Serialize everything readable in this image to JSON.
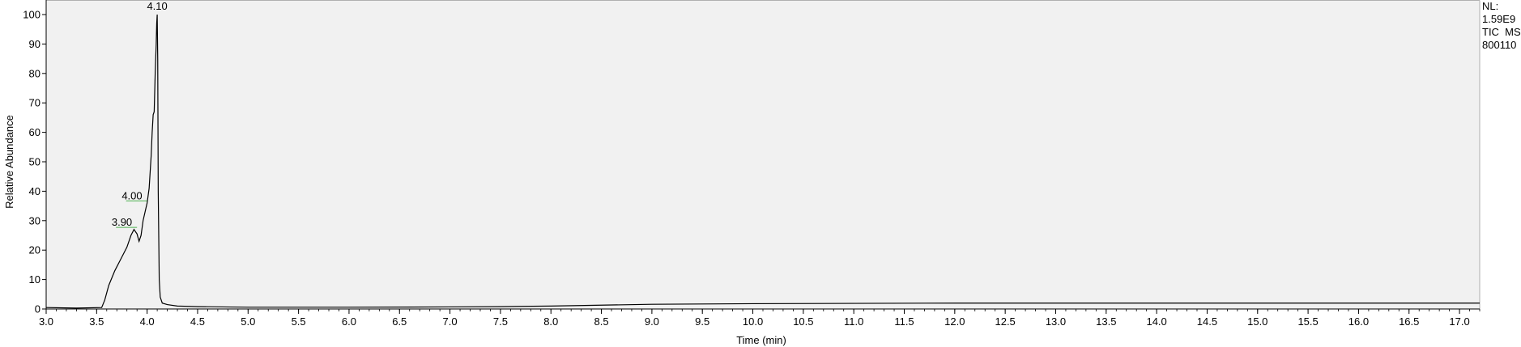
{
  "chart_data": {
    "type": "line",
    "xlabel": "Time (min)",
    "ylabel": "Relative Abundance",
    "xlim": [
      3.0,
      17.2
    ],
    "ylim": [
      0,
      100
    ],
    "x_ticks": [
      "3.0",
      "3.5",
      "4.0",
      "4.5",
      "5.0",
      "5.5",
      "6.0",
      "6.5",
      "7.0",
      "7.5",
      "8.0",
      "8.5",
      "9.0",
      "9.5",
      "10.0",
      "10.5",
      "11.0",
      "11.5",
      "12.0",
      "12.5",
      "13.0",
      "13.5",
      "14.0",
      "14.5",
      "15.0",
      "15.5",
      "16.0",
      "16.5",
      "17.0"
    ],
    "y_ticks": [
      "0",
      "10",
      "20",
      "30",
      "40",
      "50",
      "60",
      "70",
      "80",
      "90",
      "100"
    ],
    "info": [
      "NL:",
      "1.59E9",
      "TIC  MS",
      "800110"
    ],
    "peak_labels": [
      {
        "x": 4.1,
        "y": 100,
        "text": "4.10"
      },
      {
        "x": 4.0,
        "y": 37,
        "text": "4.00"
      },
      {
        "x": 3.9,
        "y": 28,
        "text": "3.90"
      }
    ],
    "series": [
      {
        "x": [
          3.0,
          3.3,
          3.55,
          3.58,
          3.62,
          3.68,
          3.74,
          3.8,
          3.84,
          3.87,
          3.89,
          3.9,
          3.92,
          3.94,
          3.96,
          3.98,
          4.0,
          4.02,
          4.04,
          4.05,
          4.06,
          4.07,
          4.08,
          4.09,
          4.095,
          4.1,
          4.105,
          4.11,
          4.12,
          4.13,
          4.15,
          4.2,
          4.3,
          4.5,
          5.0,
          6.0,
          7.0,
          7.5,
          8.0,
          8.5,
          9.0,
          10.0,
          11.0,
          12.0,
          13.0,
          14.0,
          15.0,
          16.0,
          17.0,
          17.2
        ],
        "y": [
          0.5,
          0.3,
          0.5,
          3,
          8,
          13,
          17,
          21,
          25,
          27,
          26,
          25.5,
          23,
          25,
          30,
          33,
          36,
          41,
          52,
          60,
          66,
          67,
          80,
          90,
          97,
          100,
          85,
          40,
          10,
          4,
          2,
          1.5,
          1,
          0.8,
          0.6,
          0.6,
          0.7,
          0.8,
          1.0,
          1.3,
          1.6,
          1.8,
          1.9,
          2.0,
          2.0,
          2.0,
          2.0,
          2.0,
          2.0,
          2.0
        ]
      }
    ]
  }
}
